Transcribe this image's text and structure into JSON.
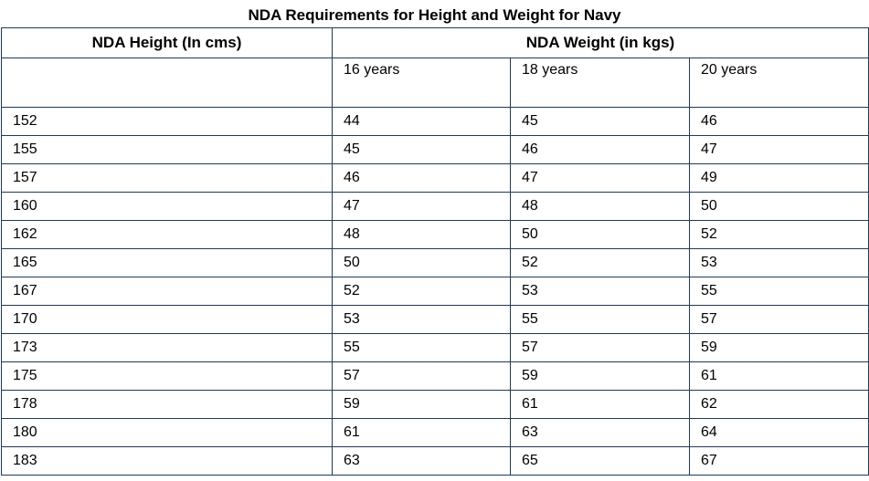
{
  "title": "NDA Requirements for Height and Weight for Navy",
  "headers": {
    "height": "NDA Height (In cms)",
    "weight": "NDA Weight (in kgs)",
    "age_columns": [
      "16 years",
      "18 years",
      "20 years"
    ]
  },
  "rows": [
    [
      "152",
      "44",
      "45",
      "46"
    ],
    [
      "155",
      "45",
      "46",
      "47"
    ],
    [
      "157",
      "46",
      "47",
      "49"
    ],
    [
      "160",
      "47",
      "48",
      "50"
    ],
    [
      "162",
      "48",
      "50",
      "52"
    ],
    [
      "165",
      "50",
      "52",
      "53"
    ],
    [
      "167",
      "52",
      "53",
      "55"
    ],
    [
      "170",
      "53",
      "55",
      "57"
    ],
    [
      "173",
      "55",
      "57",
      "59"
    ],
    [
      "175",
      "57",
      "59",
      "61"
    ],
    [
      "178",
      "59",
      "61",
      "62"
    ],
    [
      "180",
      "61",
      "63",
      "64"
    ],
    [
      "183",
      "63",
      "65",
      "67"
    ]
  ]
}
